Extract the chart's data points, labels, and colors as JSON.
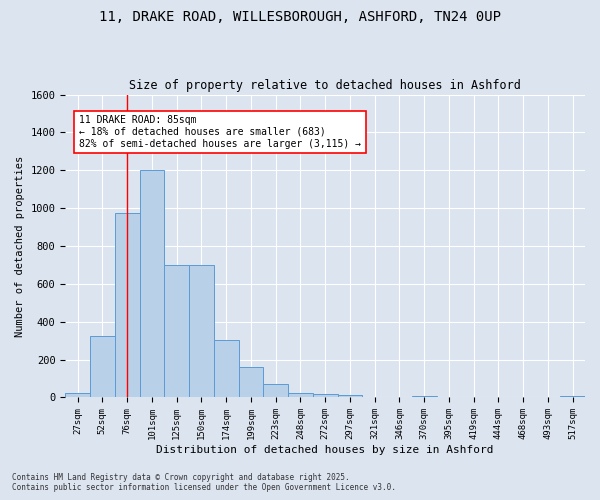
{
  "title_line1": "11, DRAKE ROAD, WILLESBOROUGH, ASHFORD, TN24 0UP",
  "title_line2": "Size of property relative to detached houses in Ashford",
  "xlabel": "Distribution of detached houses by size in Ashford",
  "ylabel": "Number of detached properties",
  "footnote_line1": "Contains HM Land Registry data © Crown copyright and database right 2025.",
  "footnote_line2": "Contains public sector information licensed under the Open Government Licence v3.0.",
  "bar_labels": [
    "27sqm",
    "52sqm",
    "76sqm",
    "101sqm",
    "125sqm",
    "150sqm",
    "174sqm",
    "199sqm",
    "223sqm",
    "248sqm",
    "272sqm",
    "297sqm",
    "321sqm",
    "346sqm",
    "370sqm",
    "395sqm",
    "419sqm",
    "444sqm",
    "468sqm",
    "493sqm",
    "517sqm"
  ],
  "bar_values": [
    25,
    325,
    975,
    1200,
    700,
    700,
    305,
    160,
    70,
    25,
    20,
    15,
    0,
    0,
    10,
    0,
    0,
    0,
    0,
    0,
    10
  ],
  "bar_color": "#b8d0e8",
  "bar_edge_color": "#5b9bd5",
  "bg_color": "#dce4f0",
  "grid_color": "#ffffff",
  "annotation_text": "11 DRAKE ROAD: 85sqm\n← 18% of detached houses are smaller (683)\n82% of semi-detached houses are larger (3,115) →",
  "vline_x": 2.0,
  "ylim": [
    0,
    1600
  ],
  "yticks": [
    0,
    200,
    400,
    600,
    800,
    1000,
    1200,
    1400,
    1600
  ]
}
